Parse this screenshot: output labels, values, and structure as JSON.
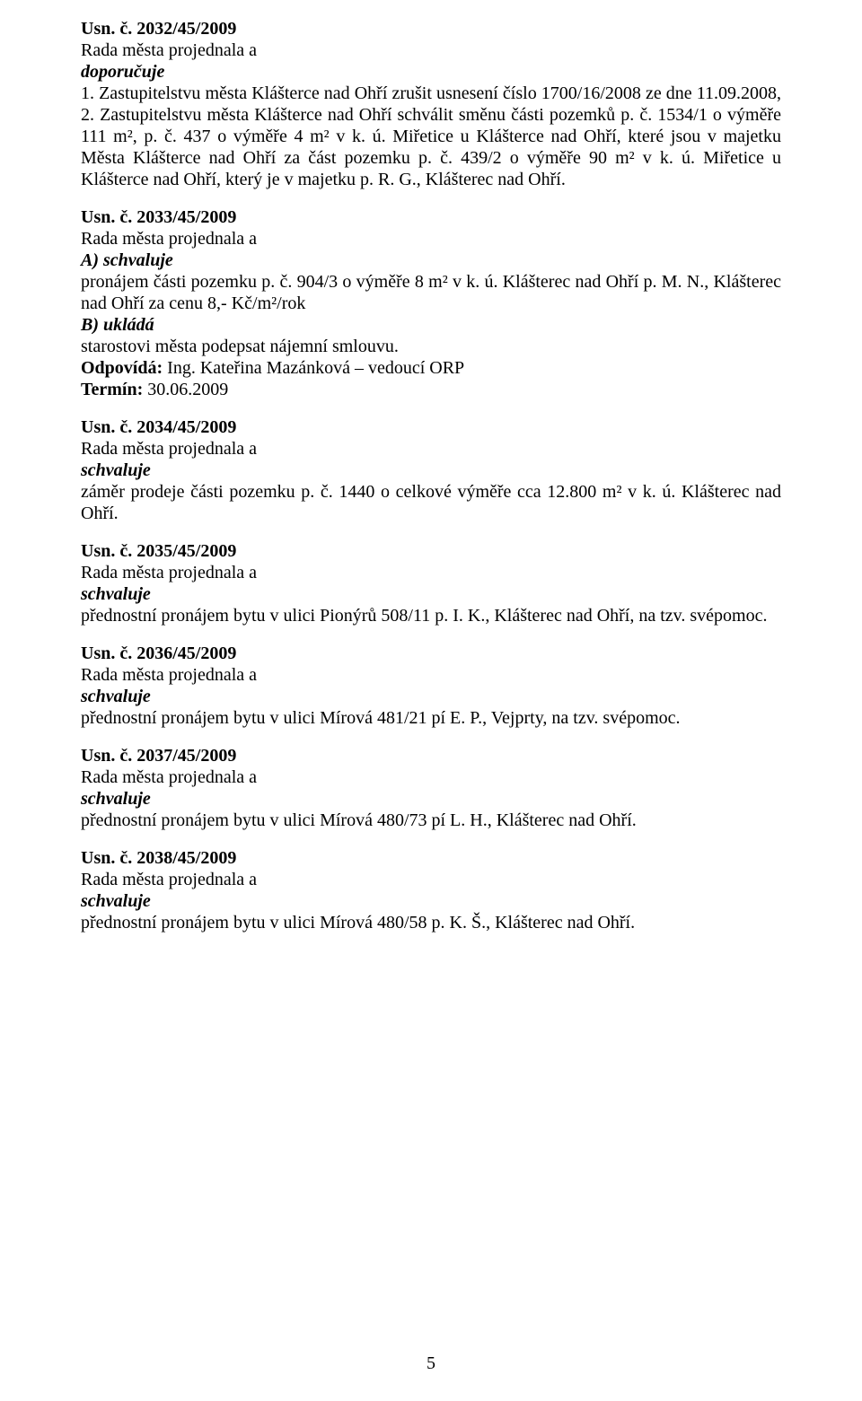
{
  "font": {
    "family": "Times New Roman",
    "size_pt": 12
  },
  "colors": {
    "text": "#000000",
    "background": "#ffffff"
  },
  "resolutions": [
    {
      "id": "2032",
      "heading": "Usn. č. 2032/45/2009",
      "line1": "Rada města projednala a",
      "action": "doporučuje",
      "body": "1. Zastupitelstvu města Klášterce nad Ohří zrušit usnesení číslo 1700/16/2008 ze dne 11.09.2008, 2. Zastupitelstvu města Klášterce nad Ohří schválit směnu části pozemků p. č. 1534/1 o výměře 111 m², p. č. 437 o výměře 4 m² v k. ú. Miřetice u Klášterce nad Ohří, které jsou v majetku Města Klášterce nad Ohří za část pozemku p. č. 439/2 o výměře 90 m² v k. ú. Miřetice u Klášterce nad Ohří, který je v majetku p. R. G., Klášterec nad Ohří."
    },
    {
      "id": "2033",
      "heading": "Usn. č. 2033/45/2009",
      "line1": "Rada města projednala a",
      "actionA": "A) schvaluje",
      "bodyA": "pronájem části pozemku p. č. 904/3 o výměře 8 m² v k. ú. Klášterec nad Ohří p. M. N., Klášterec nad Ohří za cenu 8,- Kč/m²/rok",
      "actionB": "B) ukládá",
      "bodyB": "starostovi města podepsat nájemní smlouvu.",
      "resp_label": "Odpovídá:",
      "resp_value": " Ing. Kateřina Mazánková – vedoucí ORP",
      "term_label": "Termín:",
      "term_value": " 30.06.2009"
    },
    {
      "id": "2034",
      "heading": "Usn. č. 2034/45/2009",
      "line1": "Rada města projednala a",
      "action": "schvaluje",
      "body": "záměr prodeje části pozemku p. č. 1440 o celkové výměře cca 12.800 m² v k. ú. Klášterec nad Ohří."
    },
    {
      "id": "2035",
      "heading": "Usn. č. 2035/45/2009",
      "line1": "Rada města projednala a",
      "action": "schvaluje",
      "body": "přednostní pronájem bytu v ulici Pionýrů 508/11 p. I. K., Klášterec nad Ohří, na tzv. svépomoc."
    },
    {
      "id": "2036",
      "heading": "Usn. č. 2036/45/2009",
      "line1": "Rada města projednala a",
      "action": "schvaluje",
      "body": "přednostní pronájem bytu v ulici Mírová 481/21 pí E. P., Vejprty, na tzv. svépomoc."
    },
    {
      "id": "2037",
      "heading": "Usn. č. 2037/45/2009",
      "line1": "Rada města projednala a",
      "action": "schvaluje",
      "body": "přednostní pronájem bytu v ulici Mírová 480/73 pí L. H., Klášterec nad Ohří."
    },
    {
      "id": "2038",
      "heading": "Usn. č. 2038/45/2009",
      "line1": "Rada města projednala a",
      "action": "schvaluje",
      "body": "přednostní pronájem bytu v ulici Mírová 480/58 p. K. Š., Klášterec nad Ohří."
    }
  ],
  "page_number": "5"
}
